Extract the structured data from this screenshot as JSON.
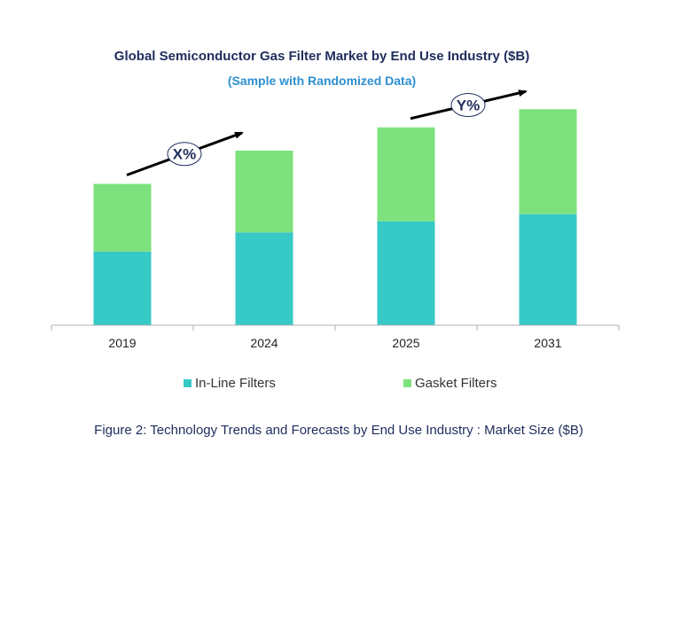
{
  "chart_data": {
    "type": "bar",
    "stacked": true,
    "title": "Global Semiconductor Gas Filter Market by End Use Industry ($B)",
    "subtitle": "(Sample with Randomized Data)",
    "categories": [
      "2019",
      "2024",
      "2025",
      "2031"
    ],
    "series": [
      {
        "name": "In-Line Filters",
        "color": "#36c9c6",
        "values": [
          73,
          92,
          103,
          110
        ]
      },
      {
        "name": "Gasket Filters",
        "color": "#7de27d",
        "values": [
          67,
          81,
          93,
          104
        ]
      }
    ],
    "ylim": [
      0,
      230
    ],
    "grid": false,
    "legend": "bottom",
    "annotations": [
      {
        "label": "X%",
        "from": "2019",
        "to": "2024"
      },
      {
        "label": "Y%",
        "from": "2025",
        "to": "2031"
      }
    ],
    "caption": "Figure 2: Technology  Trends  and Forecasts by End Use Industry  : Market Size ($B)"
  }
}
